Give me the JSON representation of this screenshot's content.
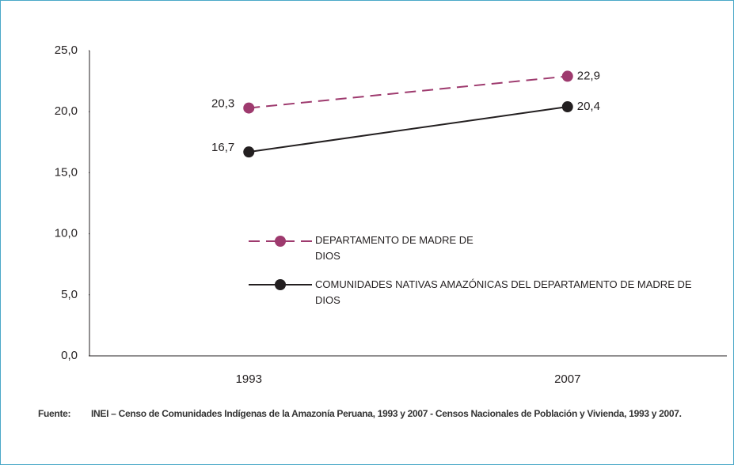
{
  "chart_data": {
    "type": "line",
    "categories": [
      "1993",
      "2007"
    ],
    "series": [
      {
        "name": "DEPARTAMENTO DE MADRE DE DIOS",
        "color": "#9e3a6e",
        "dashed": true,
        "values": [
          20.3,
          22.9
        ],
        "value_labels": [
          "20,3",
          "22,9"
        ]
      },
      {
        "name": "COMUNIDADES NATIVAS AMAZÓNICAS DEL DEPARTAMENTO DE MADRE DE DIOS",
        "color": "#231f20",
        "dashed": false,
        "values": [
          16.7,
          20.4
        ],
        "value_labels": [
          "16,7",
          "20,4"
        ]
      }
    ],
    "ylim": [
      0,
      25
    ],
    "yticks": [
      {
        "value": 0,
        "label": "0,0"
      },
      {
        "value": 5,
        "label": "5,0"
      },
      {
        "value": 10,
        "label": "10,0"
      },
      {
        "value": 15,
        "label": "15,0"
      },
      {
        "value": 20,
        "label": "20,0"
      },
      {
        "value": 25,
        "label": "25,0"
      }
    ],
    "grid": false,
    "source_label": "Fuente:",
    "source": "INEI – Censo de Comunidades Indígenas de la Amazonía Peruana, 1993 y 2007 - Censos Nacionales de Población y Vivienda, 1993 y 2007."
  }
}
